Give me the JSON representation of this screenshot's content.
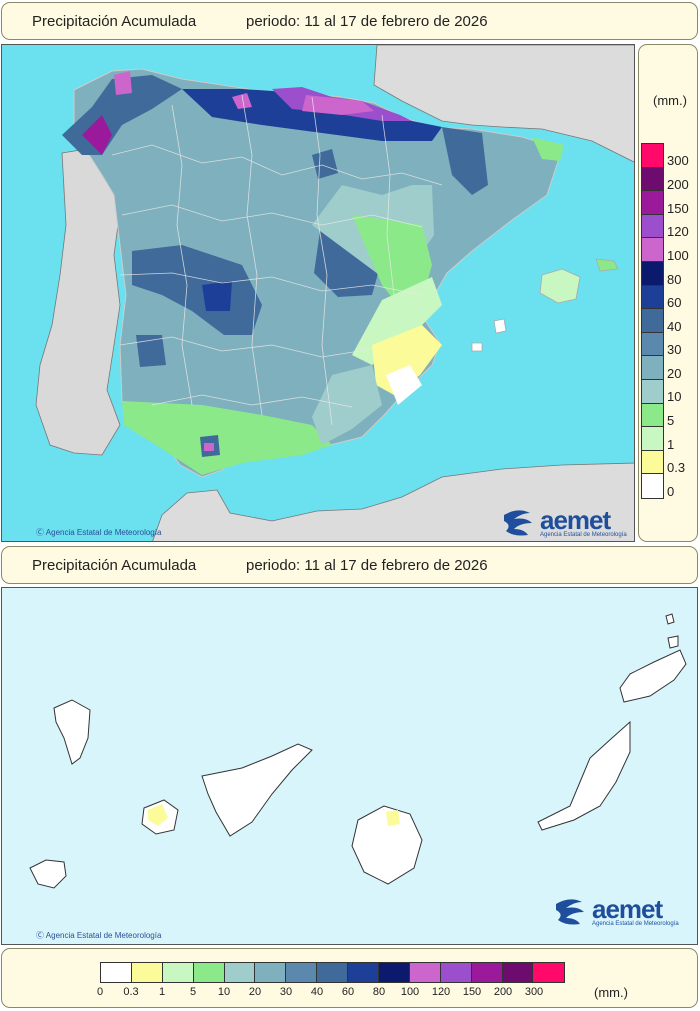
{
  "header_top": {
    "title": "Precipitación Acumulada",
    "period": "periodo: 11 al 17 de febrero de 2026"
  },
  "header_bottom": {
    "title": "Precipitación Acumulada",
    "period": "periodo: 11 al 17 de febrero de 2026"
  },
  "legend": {
    "unit": "(mm.)",
    "levels": [
      "0",
      "0.3",
      "1",
      "5",
      "10",
      "20",
      "30",
      "40",
      "60",
      "80",
      "100",
      "120",
      "150",
      "200",
      "300"
    ],
    "colors": [
      "#ffffff",
      "#fbfb9a",
      "#c8f7c2",
      "#8ce98a",
      "#9fcdcb",
      "#7fb0bd",
      "#5b88ad",
      "#3f6a9a",
      "#1e3f98",
      "#0c1a6e",
      "#cc66cc",
      "#9b4fcc",
      "#9b1a9b",
      "#6e0b6e",
      "#ff0a6a"
    ]
  },
  "credits": {
    "top": "Agencia Estatal de Meteorología",
    "bottom": "Agencia Estatal de Meteorología"
  },
  "logo": {
    "word": "aemet",
    "subtitle": "Agencia Estatal de Meteorología"
  }
}
